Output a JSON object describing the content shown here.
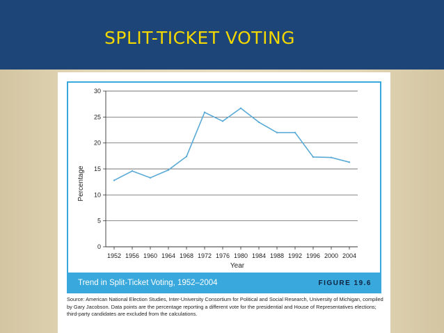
{
  "slide": {
    "title": "SPLIT-TICKET VOTING",
    "colors": {
      "title_band": "#1e4577",
      "title_text": "#f2d700",
      "background": "#d6c9a6"
    }
  },
  "figure": {
    "caption": "Trend in Split-Ticket Voting, 1952–2004",
    "label": "FIGURE 19.6",
    "source": "Source: American National Election Studies, Inter-University Consortium for Political and Social Research, University of Michigan, compiled by Gary Jacobson. Data points are the percentage reporting a different vote for the presidential and House of Representatives elections; third-party candidates are excluded from the calculations.",
    "colors": {
      "frame": "#39a8dc",
      "caption_bar": "#39a8dc",
      "line": "#5aaad6"
    }
  },
  "chart_data": {
    "type": "line",
    "title": "",
    "xlabel": "Year",
    "ylabel": "Percentage",
    "x": [
      1952,
      1956,
      1960,
      1964,
      1968,
      1972,
      1976,
      1980,
      1984,
      1988,
      1992,
      1996,
      2000,
      2004
    ],
    "series": [
      {
        "values": [
          12.8,
          14.6,
          13.3,
          14.8,
          17.4,
          25.9,
          24.2,
          26.7,
          24.0,
          22.0,
          22.0,
          17.3,
          17.2,
          16.3
        ]
      }
    ],
    "ylim": [
      0,
      30
    ],
    "yticks": [
      0,
      5,
      10,
      15,
      20,
      25,
      30
    ],
    "grid": "horizontal"
  }
}
